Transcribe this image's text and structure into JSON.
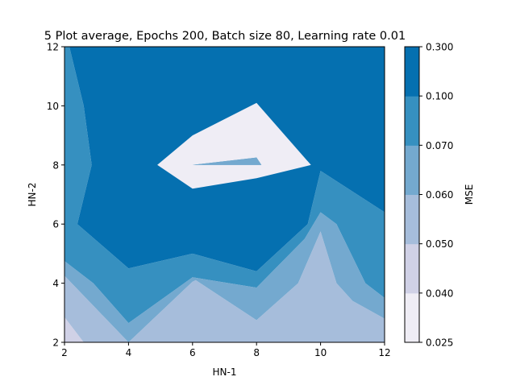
{
  "chart_data": {
    "type": "contour",
    "title": "5 Plot average, Epochs 200, Batch size 80, Learning rate 0.01",
    "xlabel": "HN-1",
    "ylabel": "HN-2",
    "xlim": [
      2,
      12
    ],
    "ylim": [
      2,
      12
    ],
    "x_ticks": [
      "2",
      "4",
      "6",
      "8",
      "10",
      "12"
    ],
    "y_ticks": [
      "2",
      "4",
      "6",
      "8",
      "10",
      "12"
    ],
    "colorbar": {
      "label": "MSE",
      "levels": [
        0.025,
        0.04,
        0.05,
        0.06,
        0.07,
        0.1,
        0.3
      ],
      "tick_labels": [
        "0.025",
        "0.040",
        "0.050",
        "0.060",
        "0.070",
        "0.100",
        "0.300"
      ],
      "colors": [
        "#efedf5",
        "#d0d1e6",
        "#a6bddb",
        "#74a9cf",
        "#3690c0",
        "#0570b0"
      ]
    },
    "regions": [
      {
        "level": 5,
        "color": "#0570b0",
        "polygons": [
          [
            [
              2.15,
              12
            ],
            [
              12,
              12
            ],
            [
              12,
              6.4
            ],
            [
              10,
              7.8
            ],
            [
              9.7,
              8
            ],
            [
              8,
              10.1
            ],
            [
              6,
              9
            ],
            [
              4.9,
              8
            ],
            [
              6,
              7.2
            ],
            [
              8,
              7.55
            ],
            [
              9.7,
              8
            ],
            [
              10,
              7.8
            ],
            [
              9.6,
              6
            ],
            [
              8,
              4.4
            ],
            [
              6,
              5
            ],
            [
              4,
              4.5
            ],
            [
              2.4,
              6
            ],
            [
              2.85,
              8
            ],
            [
              2.6,
              10
            ]
          ]
        ]
      },
      {
        "level": 4,
        "color": "#3690c0",
        "polygons": [
          [
            [
              2,
              12
            ],
            [
              2.15,
              12
            ],
            [
              2.6,
              10
            ],
            [
              2.85,
              8
            ],
            [
              2.4,
              6
            ],
            [
              4,
              4.5
            ],
            [
              6,
              5
            ],
            [
              8,
              4.4
            ],
            [
              9.6,
              6
            ],
            [
              10,
              7.8
            ],
            [
              12,
              6.4
            ],
            [
              12,
              3.5
            ],
            [
              11.4,
              4
            ],
            [
              10.5,
              6
            ],
            [
              10,
              6.4
            ],
            [
              9.5,
              5.5
            ],
            [
              8,
              3.85
            ],
            [
              6,
              4.2
            ],
            [
              4,
              2.65
            ],
            [
              2.9,
              4
            ],
            [
              2,
              4.75
            ]
          ],
          [
            [
              6,
              8
            ],
            [
              8,
              8.25
            ],
            [
              8.15,
              8
            ],
            [
              6,
              8
            ]
          ]
        ]
      },
      {
        "level": 3,
        "color": "#74a9cf",
        "polygons": [
          [
            [
              2,
              4.75
            ],
            [
              2.9,
              4
            ],
            [
              4,
              2.65
            ],
            [
              6,
              4.2
            ],
            [
              8,
              3.85
            ],
            [
              9.5,
              5.5
            ],
            [
              10,
              6.4
            ],
            [
              10.5,
              6
            ],
            [
              11.4,
              4
            ],
            [
              12,
              3.5
            ],
            [
              12,
              2.8
            ],
            [
              11,
              3.4
            ],
            [
              10.5,
              4
            ],
            [
              10,
              5.75
            ],
            [
              9.3,
              4
            ],
            [
              8,
              2.75
            ],
            [
              6.1,
              4.1
            ],
            [
              6,
              4.05
            ],
            [
              4,
              2
            ],
            [
              2,
              4.25
            ]
          ]
        ]
      },
      {
        "level": 3,
        "color": "#74a9cf",
        "polygons": [
          [
            [
              6,
              8
            ],
            [
              8,
              8.25
            ],
            [
              8.15,
              8
            ]
          ]
        ]
      },
      {
        "level": 2,
        "color": "#a6bddb",
        "polygons": [
          [
            [
              2,
              4.25
            ],
            [
              4,
              2
            ],
            [
              6,
              4.05
            ],
            [
              6.1,
              4.1
            ],
            [
              8,
              2.75
            ],
            [
              9.3,
              4
            ],
            [
              10,
              5.75
            ],
            [
              10.5,
              4
            ],
            [
              11,
              3.4
            ],
            [
              12,
              2.8
            ],
            [
              12,
              2
            ],
            [
              2.6,
              2
            ],
            [
              2,
              2.85
            ]
          ]
        ]
      },
      {
        "level": 1,
        "color": "#d0d1e6",
        "polygons": [
          [
            [
              2,
              2.85
            ],
            [
              2.6,
              2
            ],
            [
              2,
              2
            ]
          ]
        ]
      }
    ]
  }
}
